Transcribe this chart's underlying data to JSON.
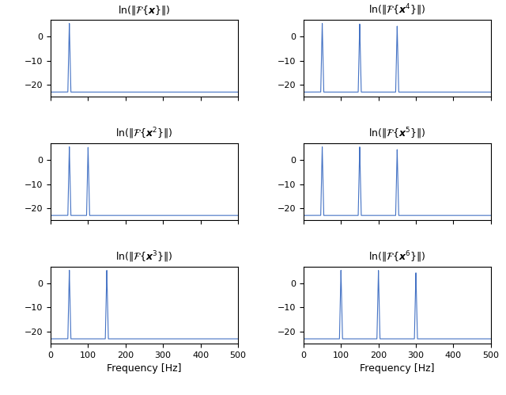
{
  "peaks": [
    [
      [
        50
      ],
      [
        5.5
      ]
    ],
    [
      [
        50,
        150,
        250
      ],
      [
        5.5,
        5.3,
        4.5
      ]
    ],
    [
      [
        50,
        100
      ],
      [
        5.5,
        5.3
      ]
    ],
    [
      [
        50,
        150,
        250
      ],
      [
        5.5,
        5.5,
        4.5
      ]
    ],
    [
      [
        50,
        150
      ],
      [
        5.5,
        5.5
      ]
    ],
    [
      [
        100,
        200,
        300
      ],
      [
        5.5,
        5.5,
        4.5
      ]
    ]
  ],
  "xlim": [
    0,
    500
  ],
  "ylim": [
    -25,
    7
  ],
  "yticks": [
    0,
    -10,
    -20
  ],
  "xticks": [
    0,
    100,
    200,
    300,
    400,
    500
  ],
  "line_color": "#4472C4",
  "noise_floor": -23,
  "xlabel": "Frequency [Hz]",
  "figsize": [
    6.4,
    4.99
  ],
  "dpi": 100,
  "n_freqs": 10000,
  "spike_halfwidth_hz": 4
}
